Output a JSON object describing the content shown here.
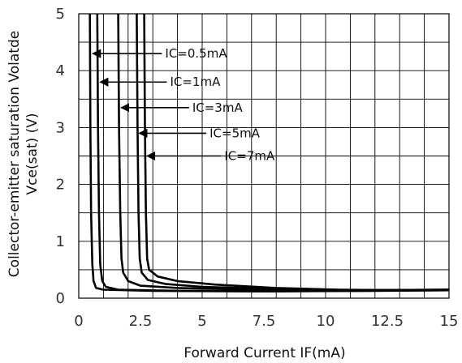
{
  "chart_data": {
    "type": "line",
    "xlabel": "Forward Current IF(mA)",
    "ylabel_line1": "Collector-emitter saturation Volatde",
    "ylabel_line2": "Vce(sat)  (V)",
    "xlim": [
      0,
      15
    ],
    "ylim": [
      0,
      5
    ],
    "xticks": [
      {
        "value": 0,
        "label": "0"
      },
      {
        "value": 2.5,
        "label": "2.5"
      },
      {
        "value": 5,
        "label": "5"
      },
      {
        "value": 7.5,
        "label": "7.5"
      },
      {
        "value": 10,
        "label": "10"
      },
      {
        "value": 12.5,
        "label": "12.5"
      },
      {
        "value": 15,
        "label": "15"
      }
    ],
    "yticks": [
      {
        "value": 0,
        "label": "0"
      },
      {
        "value": 1,
        "label": "1"
      },
      {
        "value": 2,
        "label": "2"
      },
      {
        "value": 3,
        "label": "3"
      },
      {
        "value": 4,
        "label": "4"
      },
      {
        "value": 5,
        "label": "5"
      }
    ],
    "grid_x_step": 1,
    "grid_y_step": 0.5,
    "grid": true,
    "series": [
      {
        "name": "IC=0.5mA",
        "points": [
          [
            0.45,
            5.0
          ],
          [
            0.47,
            3.0
          ],
          [
            0.5,
            1.5
          ],
          [
            0.55,
            0.6
          ],
          [
            0.6,
            0.3
          ],
          [
            0.7,
            0.18
          ],
          [
            1.0,
            0.15
          ],
          [
            3.0,
            0.13
          ],
          [
            7.0,
            0.12
          ],
          [
            11.0,
            0.13
          ],
          [
            15.0,
            0.14
          ]
        ],
        "arrow_to": [
          0.5,
          4.3
        ],
        "label_at": [
          3.5,
          4.3
        ]
      },
      {
        "name": "IC=1mA",
        "points": [
          [
            0.75,
            5.0
          ],
          [
            0.78,
            3.0
          ],
          [
            0.82,
            1.5
          ],
          [
            0.87,
            0.6
          ],
          [
            0.95,
            0.3
          ],
          [
            1.1,
            0.2
          ],
          [
            1.6,
            0.15
          ],
          [
            4.0,
            0.13
          ],
          [
            8.0,
            0.12
          ],
          [
            12.0,
            0.13
          ],
          [
            15.0,
            0.14
          ]
        ],
        "arrow_to": [
          0.8,
          3.8
        ],
        "label_at": [
          3.7,
          3.8
        ]
      },
      {
        "name": "IC=3mA",
        "points": [
          [
            1.6,
            5.0
          ],
          [
            1.63,
            3.0
          ],
          [
            1.68,
            1.5
          ],
          [
            1.73,
            0.7
          ],
          [
            1.8,
            0.45
          ],
          [
            2.0,
            0.3
          ],
          [
            2.5,
            0.22
          ],
          [
            4.0,
            0.18
          ],
          [
            7.0,
            0.15
          ],
          [
            11.0,
            0.14
          ],
          [
            15.0,
            0.15
          ]
        ],
        "arrow_to": [
          1.65,
          3.35
        ],
        "label_at": [
          4.6,
          3.35
        ]
      },
      {
        "name": "IC=5mA",
        "points": [
          [
            2.35,
            5.0
          ],
          [
            2.38,
            3.0
          ],
          [
            2.42,
            1.5
          ],
          [
            2.47,
            0.7
          ],
          [
            2.55,
            0.45
          ],
          [
            2.8,
            0.32
          ],
          [
            3.5,
            0.25
          ],
          [
            5.0,
            0.2
          ],
          [
            8.0,
            0.16
          ],
          [
            12.0,
            0.14
          ],
          [
            15.0,
            0.15
          ]
        ],
        "arrow_to": [
          2.38,
          2.9
        ],
        "label_at": [
          5.3,
          2.9
        ]
      },
      {
        "name": "IC=7mA",
        "points": [
          [
            2.65,
            5.0
          ],
          [
            2.68,
            3.0
          ],
          [
            2.72,
            1.5
          ],
          [
            2.77,
            0.7
          ],
          [
            2.85,
            0.5
          ],
          [
            3.2,
            0.38
          ],
          [
            4.0,
            0.3
          ],
          [
            5.5,
            0.24
          ],
          [
            8.0,
            0.18
          ],
          [
            10.5,
            0.15
          ],
          [
            13.0,
            0.14
          ],
          [
            15.0,
            0.15
          ]
        ],
        "arrow_to": [
          2.7,
          2.5
        ],
        "label_at": [
          5.9,
          2.5
        ]
      }
    ]
  }
}
